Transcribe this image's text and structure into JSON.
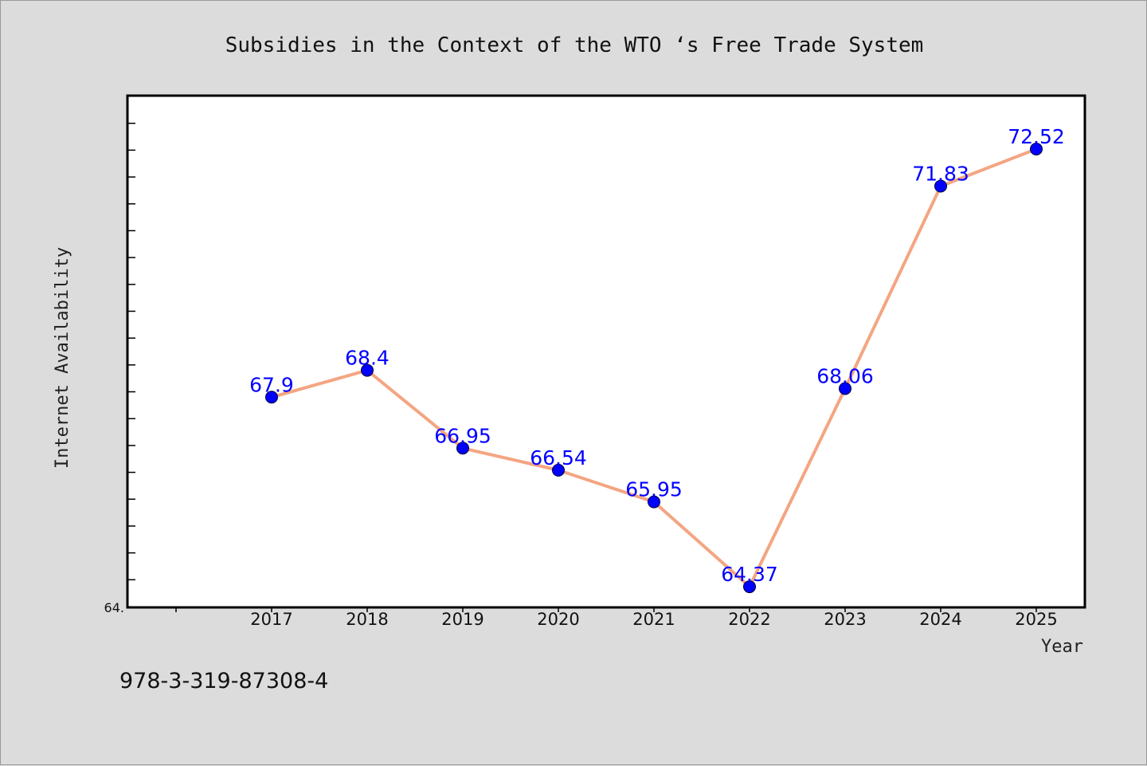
{
  "chart_data": {
    "type": "line",
    "title": "Subsidies in the Context of the WTO ‘s Free Trade System",
    "xlabel": "Year",
    "ylabel": "Internet Availability",
    "categories": [
      "2017",
      "2018",
      "2019",
      "2020",
      "2021",
      "2022",
      "2023",
      "2024",
      "2025"
    ],
    "series": [
      {
        "values": [
          67.9,
          68.4,
          66.95,
          66.54,
          65.95,
          64.37,
          68.06,
          71.83,
          72.52
        ],
        "labels": [
          "67.9",
          "68.4",
          "66.95",
          "66.54",
          "65.95",
          "64.37",
          "68.06",
          "71.83",
          "72.52"
        ]
      }
    ],
    "ylim": [
      64.0,
      73.5
    ],
    "y_min_label": "64.",
    "grid": false,
    "legend": "none",
    "colors": {
      "line": "#f4a582",
      "marker": "#0000ff",
      "label": "#0000ff",
      "background": "#dcdcdc",
      "plot_background": "#ffffff"
    }
  },
  "footer": {
    "isbn": "978-3-319-87308-4"
  }
}
